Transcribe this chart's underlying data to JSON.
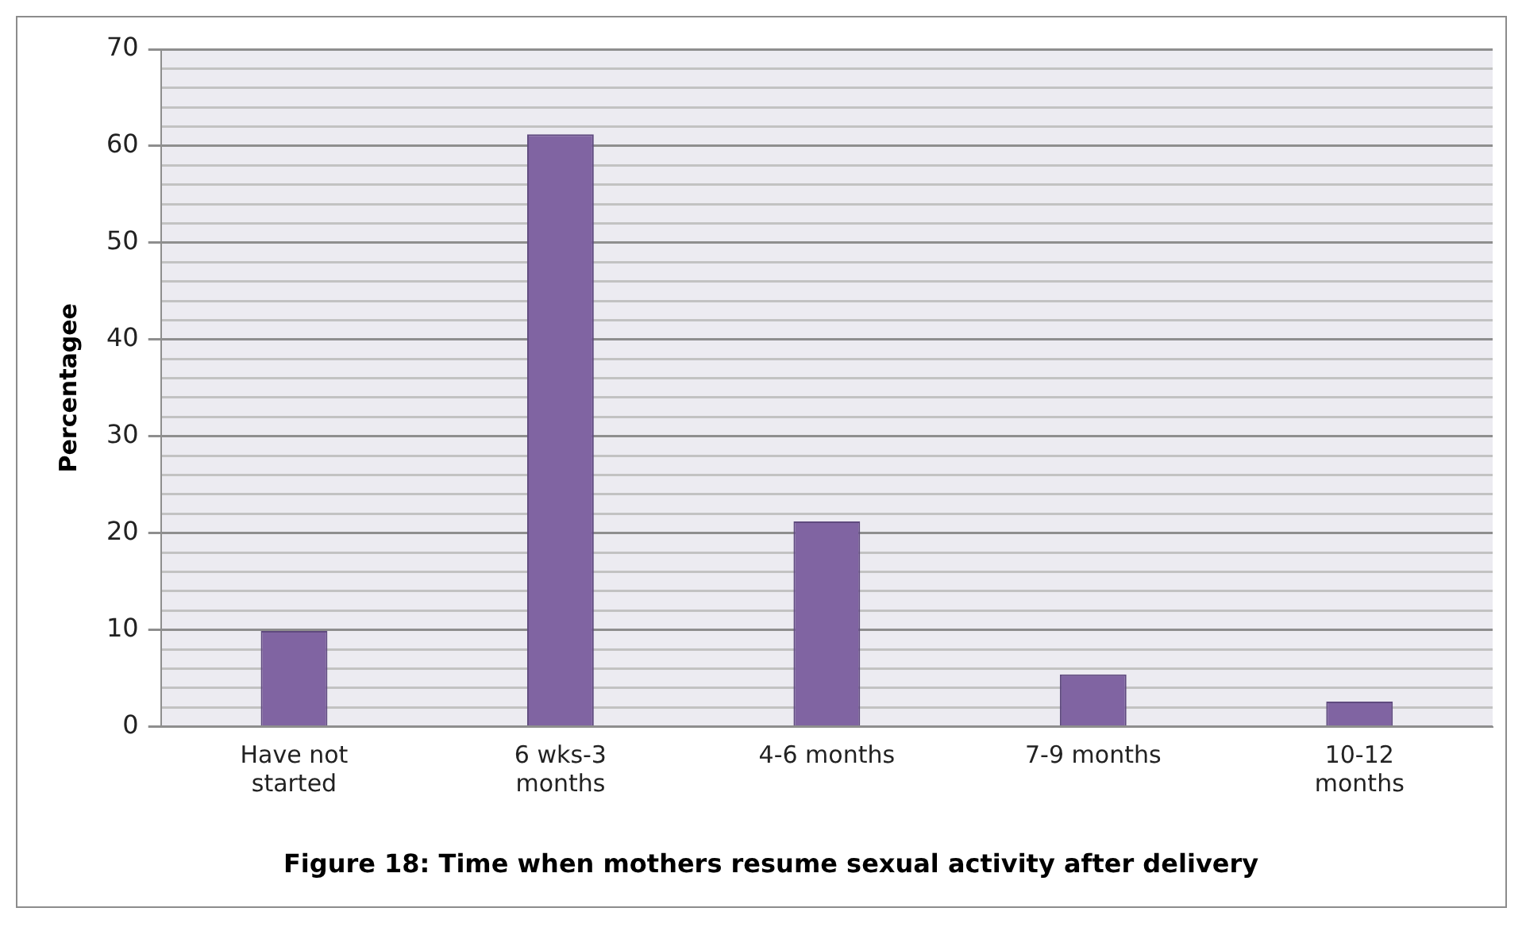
{
  "chart_data": {
    "type": "bar",
    "title": "Figure 18: Time when mothers resume sexual activity after delivery",
    "ylabel": "Percentagee",
    "categories": [
      "Have not started",
      "6 wks-3 months",
      "4-6 months",
      "7-9 months",
      "10-12 months"
    ],
    "values": [
      9.9,
      61.2,
      21.2,
      5.4,
      2.6
    ],
    "color": "#8064a2",
    "ylim": [
      0,
      70
    ],
    "yticks": [
      0,
      {
        "value": 2,
        "label": null
      },
      {
        "value": 4,
        "label": null
      },
      {
        "value": 6,
        "label": null
      },
      {
        "value": 8,
        "label": null
      },
      10,
      {
        "value": 12,
        "label": null
      },
      {
        "value": 14,
        "label": null
      },
      {
        "value": 16,
        "label": null
      },
      {
        "value": 18,
        "label": null
      },
      20,
      {
        "value": 22,
        "label": null
      },
      {
        "value": 24,
        "label": null
      },
      {
        "value": 26,
        "label": null
      },
      {
        "value": 28,
        "label": null
      },
      30,
      {
        "value": 32,
        "label": null
      },
      {
        "value": 34,
        "label": null
      },
      {
        "value": 36,
        "label": null
      },
      {
        "value": 38,
        "label": null
      },
      40,
      {
        "value": 42,
        "label": null
      },
      {
        "value": 44,
        "label": null
      },
      {
        "value": 46,
        "label": null
      },
      {
        "value": 48,
        "label": null
      },
      50,
      {
        "value": 52,
        "label": null
      },
      {
        "value": 54,
        "label": null
      },
      {
        "value": 56,
        "label": null
      },
      {
        "value": 58,
        "label": null
      },
      60,
      {
        "value": 62,
        "label": null
      },
      {
        "value": 64,
        "label": null
      },
      {
        "value": 66,
        "label": null
      },
      {
        "value": 68,
        "label": null
      },
      70
    ],
    "grid": "y",
    "legend": false
  }
}
